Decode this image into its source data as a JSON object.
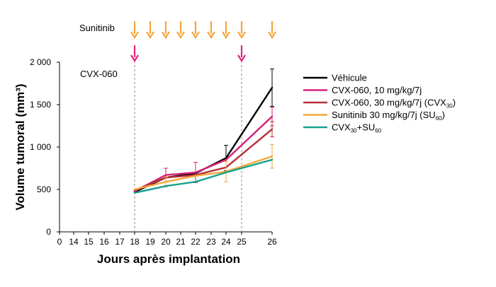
{
  "chart_data": {
    "type": "line",
    "xlabel": "Jours après implantation",
    "ylabel": "Volume tumoral (mm³)",
    "ylim": [
      0,
      2000
    ],
    "y_ticks": [
      {
        "value": 0,
        "label": "0"
      },
      {
        "value": 500,
        "label": "500"
      },
      {
        "value": 1000,
        "label": "1 000"
      },
      {
        "value": 1500,
        "label": "1 500"
      },
      {
        "value": 2000,
        "label": "2 000"
      }
    ],
    "x_ticks": [
      "0",
      "14",
      "15",
      "16",
      "17",
      "18",
      "19",
      "20",
      "21",
      "22",
      "23",
      "24",
      "25",
      "26"
    ],
    "x_tick_days": [
      0,
      14,
      15,
      16,
      17,
      18,
      19,
      20,
      21,
      22,
      23,
      24,
      25,
      26
    ],
    "grid": false,
    "legend_position": "right",
    "annotations": {
      "sunitinib_label": "Sunitinib",
      "sunitinib_days": [
        18,
        19,
        20,
        21,
        22,
        23,
        24,
        25,
        26
      ],
      "sunitinib_color": "#f2a73b",
      "cvx_label": "CVX-060",
      "cvx_days": [
        18,
        25
      ],
      "cvx_color": "#e2237a",
      "dashed_lines_days": [
        18,
        25
      ]
    },
    "series": [
      {
        "name": "Véhicule",
        "legend_parts": [
          [
            "Véhicule",
            ""
          ]
        ],
        "color": "#000000",
        "x": [
          18,
          20,
          22,
          24,
          26
        ],
        "y": [
          470,
          640,
          690,
          870,
          1700
        ],
        "err": [
          0,
          0,
          0,
          150,
          220
        ]
      },
      {
        "name": "CVX-060, 10 mg/kg/7j",
        "legend_parts": [
          [
            "CVX-060, 10 mg/kg/7j",
            ""
          ]
        ],
        "color": "#d6207a",
        "x": [
          18,
          20,
          22,
          24,
          26
        ],
        "y": [
          480,
          670,
          700,
          850,
          1360
        ],
        "err": [
          0,
          80,
          120,
          0,
          110
        ]
      },
      {
        "name": "CVX-060, 30 mg/kg/7j (CVX30)",
        "legend_parts": [
          [
            "CVX-060, 30 mg/kg/7j (CVX",
            ""
          ],
          [
            "30",
            "sub"
          ],
          [
            ")",
            ""
          ]
        ],
        "color": "#b8303a",
        "x": [
          18,
          20,
          22,
          24,
          26
        ],
        "y": [
          490,
          640,
          670,
          760,
          1210
        ],
        "err": [
          0,
          0,
          0,
          0,
          90
        ]
      },
      {
        "name": "Sunitinib 30 mg/kg/7j (SU60)",
        "legend_parts": [
          [
            "Sunitinib 30 mg/kg/7j (SU",
            ""
          ],
          [
            "60",
            "sub"
          ],
          [
            ")",
            ""
          ]
        ],
        "color": "#f2a73b",
        "x": [
          18,
          20,
          22,
          24,
          26
        ],
        "y": [
          500,
          590,
          660,
          710,
          890
        ],
        "err": [
          0,
          60,
          0,
          120,
          140
        ]
      },
      {
        "name": "CVX30+SU60",
        "legend_parts": [
          [
            "CVX",
            ""
          ],
          [
            "30",
            "sub"
          ],
          [
            "+SU",
            ""
          ],
          [
            "60",
            "sub"
          ]
        ],
        "color": "#16a08c",
        "x": [
          18,
          20,
          22,
          24,
          26
        ],
        "y": [
          460,
          540,
          590,
          700,
          850
        ],
        "err": [
          0,
          0,
          0,
          0,
          0
        ]
      }
    ]
  }
}
